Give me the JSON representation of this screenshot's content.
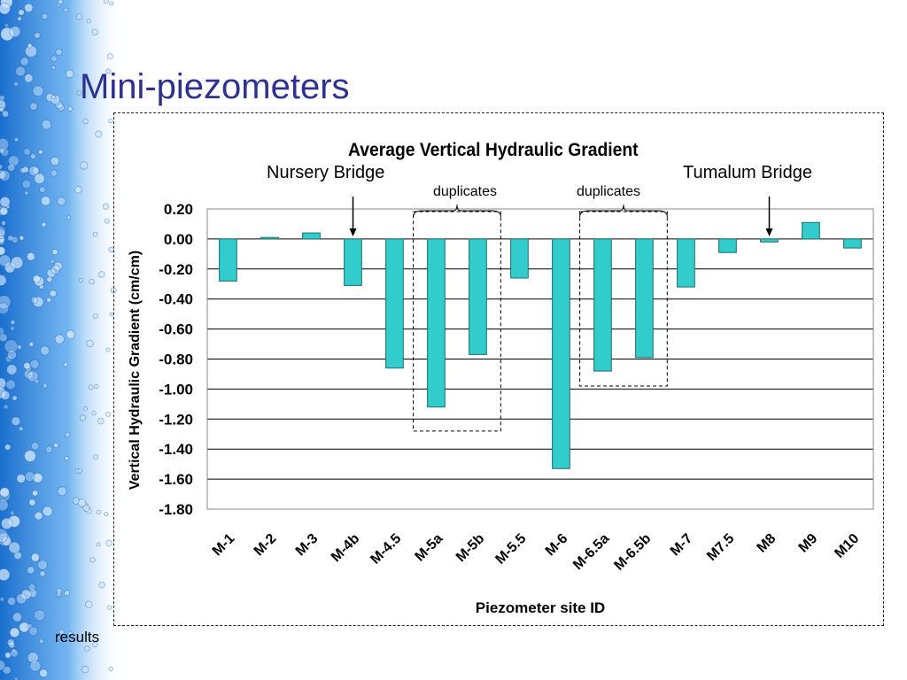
{
  "slide": {
    "title": "Mini-piezometers",
    "footer_link": "results"
  },
  "colors": {
    "title": "#2e3192",
    "bar_fill": "#33cccc",
    "bar_stroke": "#1a6f6f",
    "background_bubbles": "#1e78d2"
  },
  "chart_data": {
    "type": "bar",
    "title": "Average Vertical Hydraulic Gradient",
    "xlabel": "Piezometer site ID",
    "ylabel": "Vertical Hydraulic Gradient (cm/cm)",
    "ylim": [
      -1.8,
      0.2
    ],
    "yticks": [
      "0.20",
      "0.00",
      "-0.20",
      "-0.40",
      "-0.60",
      "-0.80",
      "-1.00",
      "-1.20",
      "-1.40",
      "-1.60",
      "-1.80"
    ],
    "grid": true,
    "categories": [
      "M-1",
      "M-2",
      "M-3",
      "M-4b",
      "M-4.5",
      "M-5a",
      "M-5b",
      "M-5.5",
      "M-6",
      "M-6.5a",
      "M-6.5b",
      "M-7",
      "M7.5",
      "M8",
      "M9",
      "M10"
    ],
    "values": [
      -0.28,
      0.01,
      0.04,
      -0.31,
      -0.86,
      -1.12,
      -0.77,
      -0.26,
      -1.53,
      -0.88,
      -0.79,
      -0.32,
      -0.09,
      -0.02,
      0.11,
      -0.06
    ],
    "annotations": {
      "nursery_bridge": "Nursery Bridge",
      "tumalum_bridge": "Tumalum Bridge",
      "duplicates_1": "duplicates",
      "duplicates_2": "duplicates"
    }
  }
}
